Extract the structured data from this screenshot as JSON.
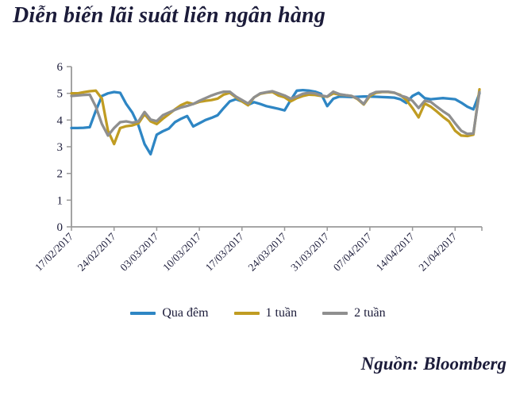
{
  "page": {
    "title": "Diễn biến lãi suất liên ngân hàng",
    "source": "Nguồn: Bloomberg"
  },
  "colors": {
    "text": "#1c1c3a",
    "axis": "#999999",
    "overnight_blue": "#2e86c4",
    "one_week_gold": "#c09c22",
    "two_week_gray": "#8f8f8f"
  },
  "chart_data": {
    "type": "line",
    "title": "Diễn biến lãi suất liên ngân hàng",
    "xlabel": "",
    "ylabel": "",
    "grid": false,
    "legend_position": "bottom",
    "y_axis": {
      "min": 0,
      "max": 6,
      "tick_labels": [
        "0",
        "1",
        "2",
        "3",
        "4",
        "5",
        "6"
      ]
    },
    "x_axis": {
      "tick_labels": [
        "17/02/2017",
        "24/02/2017",
        "03/03/2017",
        "10/03/2017",
        "17/03/2017",
        "24/03/2017",
        "31/03/2017",
        "07/04/2017",
        "14/04/2017",
        "21/04/2017"
      ],
      "tick_interval_days": 7,
      "total_days": 67
    },
    "series": [
      {
        "name": "Qua đêm",
        "key": "qua-dem",
        "color": "#2e86c4",
        "values": [
          3.7,
          3.7,
          3.71,
          3.73,
          4.35,
          4.9,
          5.0,
          5.05,
          5.02,
          4.6,
          4.28,
          3.8,
          3.1,
          2.72,
          3.45,
          3.58,
          3.68,
          3.92,
          4.05,
          4.15,
          3.76,
          3.88,
          4.0,
          4.08,
          4.18,
          4.45,
          4.7,
          4.78,
          4.7,
          4.57,
          4.67,
          4.6,
          4.52,
          4.47,
          4.42,
          4.36,
          4.75,
          5.1,
          5.12,
          5.1,
          5.06,
          4.98,
          4.52,
          4.8,
          4.88,
          4.87,
          4.86,
          4.87,
          4.88,
          4.88,
          4.87,
          4.86,
          4.85,
          4.84,
          4.78,
          4.64,
          4.9,
          5.02,
          4.82,
          4.78,
          4.8,
          4.82,
          4.8,
          4.78,
          4.65,
          4.5,
          4.4,
          5.0
        ]
      },
      {
        "name": "1 tuần",
        "key": "1-tuan",
        "color": "#c09c22",
        "values": [
          5.0,
          5.0,
          5.04,
          5.08,
          5.1,
          4.8,
          3.6,
          3.1,
          3.7,
          3.77,
          3.8,
          3.88,
          4.22,
          3.95,
          3.85,
          4.05,
          4.22,
          4.4,
          4.56,
          4.66,
          4.6,
          4.68,
          4.72,
          4.75,
          4.8,
          4.95,
          5.02,
          4.85,
          4.7,
          4.55,
          4.85,
          4.98,
          5.03,
          5.05,
          4.92,
          4.85,
          4.7,
          4.82,
          4.9,
          4.95,
          4.94,
          4.9,
          4.87,
          5.0,
          4.95,
          4.93,
          4.9,
          4.78,
          4.58,
          4.9,
          5.02,
          5.05,
          5.05,
          5.02,
          4.94,
          4.75,
          4.45,
          4.1,
          4.62,
          4.5,
          4.32,
          4.12,
          3.95,
          3.6,
          3.42,
          3.4,
          3.45,
          5.15
        ]
      },
      {
        "name": "2 tuần",
        "key": "2-tuan",
        "color": "#8f8f8f",
        "values": [
          4.9,
          4.92,
          4.94,
          4.95,
          4.5,
          3.85,
          3.42,
          3.7,
          3.92,
          3.95,
          3.9,
          3.95,
          4.3,
          4.02,
          3.96,
          4.18,
          4.28,
          4.38,
          4.47,
          4.53,
          4.6,
          4.72,
          4.82,
          4.92,
          5.0,
          5.06,
          5.06,
          4.88,
          4.75,
          4.62,
          4.85,
          5.0,
          5.04,
          5.08,
          5.0,
          4.92,
          4.8,
          4.88,
          4.98,
          5.02,
          5.0,
          4.92,
          4.88,
          5.06,
          4.97,
          4.93,
          4.9,
          4.8,
          4.6,
          4.95,
          5.05,
          5.06,
          5.06,
          5.03,
          4.92,
          4.85,
          4.72,
          4.45,
          4.72,
          4.68,
          4.5,
          4.33,
          4.18,
          3.88,
          3.6,
          3.48,
          3.5,
          5.05
        ]
      }
    ]
  }
}
